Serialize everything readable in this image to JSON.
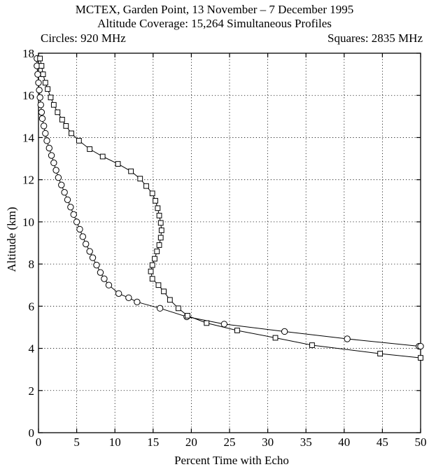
{
  "chart_data": {
    "type": "line",
    "title": "MCTEX, Garden Point, 13 November – 7 December 1995",
    "subtitle": "Altitude Coverage: 15,264 Simultaneous Profiles",
    "legend_left": "Circles: 920 MHz",
    "legend_right": "Squares: 2835 MHz",
    "xlabel": "Percent Time with Echo",
    "ylabel": "Altitude (km)",
    "xlim": [
      0,
      50
    ],
    "ylim": [
      0,
      18
    ],
    "x_ticks": [
      0,
      5,
      10,
      15,
      20,
      25,
      30,
      35,
      40,
      45,
      50
    ],
    "y_ticks": [
      0,
      2,
      4,
      6,
      8,
      10,
      12,
      14,
      16,
      18
    ],
    "grid": true,
    "grid_style": "dotted",
    "series": [
      {
        "name": "920 MHz",
        "marker": "circle",
        "points": [
          [
            -0.2,
            17.75
          ],
          [
            -0.2,
            17.4
          ],
          [
            -0.1,
            17.0
          ],
          [
            0.0,
            16.6
          ],
          [
            0.1,
            16.25
          ],
          [
            0.2,
            15.9
          ],
          [
            0.3,
            15.55
          ],
          [
            0.4,
            15.2
          ],
          [
            0.5,
            14.9
          ],
          [
            0.7,
            14.55
          ],
          [
            0.9,
            14.2
          ],
          [
            1.1,
            13.85
          ],
          [
            1.4,
            13.5
          ],
          [
            1.7,
            13.15
          ],
          [
            2.0,
            12.8
          ],
          [
            2.3,
            12.45
          ],
          [
            2.6,
            12.1
          ],
          [
            3.0,
            11.75
          ],
          [
            3.4,
            11.4
          ],
          [
            3.8,
            11.05
          ],
          [
            4.2,
            10.7
          ],
          [
            4.6,
            10.35
          ],
          [
            5.0,
            10.0
          ],
          [
            5.4,
            9.65
          ],
          [
            5.8,
            9.3
          ],
          [
            6.2,
            8.95
          ],
          [
            6.7,
            8.6
          ],
          [
            7.1,
            8.3
          ],
          [
            7.6,
            7.95
          ],
          [
            8.1,
            7.6
          ],
          [
            8.6,
            7.3
          ],
          [
            9.2,
            7.0
          ],
          [
            10.5,
            6.6
          ],
          [
            11.8,
            6.4
          ],
          [
            12.9,
            6.2
          ],
          [
            15.9,
            5.9
          ],
          [
            19.4,
            5.5
          ],
          [
            24.3,
            5.15
          ],
          [
            32.2,
            4.8
          ],
          [
            40.4,
            4.45
          ],
          [
            49.8,
            4.1
          ],
          [
            50.0,
            4.1
          ]
        ]
      },
      {
        "name": "2835 MHz",
        "marker": "square",
        "points": [
          [
            0.2,
            17.75
          ],
          [
            0.4,
            17.4
          ],
          [
            0.6,
            17.0
          ],
          [
            0.9,
            16.6
          ],
          [
            1.2,
            16.3
          ],
          [
            1.6,
            15.9
          ],
          [
            2.0,
            15.55
          ],
          [
            2.5,
            15.2
          ],
          [
            3.1,
            14.85
          ],
          [
            3.6,
            14.55
          ],
          [
            4.3,
            14.2
          ],
          [
            5.3,
            13.85
          ],
          [
            6.7,
            13.45
          ],
          [
            8.4,
            13.1
          ],
          [
            10.4,
            12.75
          ],
          [
            12.1,
            12.4
          ],
          [
            13.3,
            12.05
          ],
          [
            14.1,
            11.7
          ],
          [
            14.9,
            11.35
          ],
          [
            15.3,
            11.0
          ],
          [
            15.6,
            10.65
          ],
          [
            15.8,
            10.3
          ],
          [
            16.0,
            9.95
          ],
          [
            16.1,
            9.6
          ],
          [
            16.0,
            9.25
          ],
          [
            15.8,
            8.9
          ],
          [
            15.5,
            8.6
          ],
          [
            15.2,
            8.25
          ],
          [
            14.9,
            7.95
          ],
          [
            14.7,
            7.65
          ],
          [
            14.9,
            7.3
          ],
          [
            15.7,
            7.0
          ],
          [
            16.4,
            6.7
          ],
          [
            17.2,
            6.3
          ],
          [
            18.3,
            5.9
          ],
          [
            19.5,
            5.55
          ],
          [
            22.0,
            5.2
          ],
          [
            26.0,
            4.85
          ],
          [
            31.0,
            4.5
          ],
          [
            35.8,
            4.15
          ],
          [
            44.7,
            3.75
          ],
          [
            50.0,
            3.55
          ]
        ]
      }
    ]
  }
}
